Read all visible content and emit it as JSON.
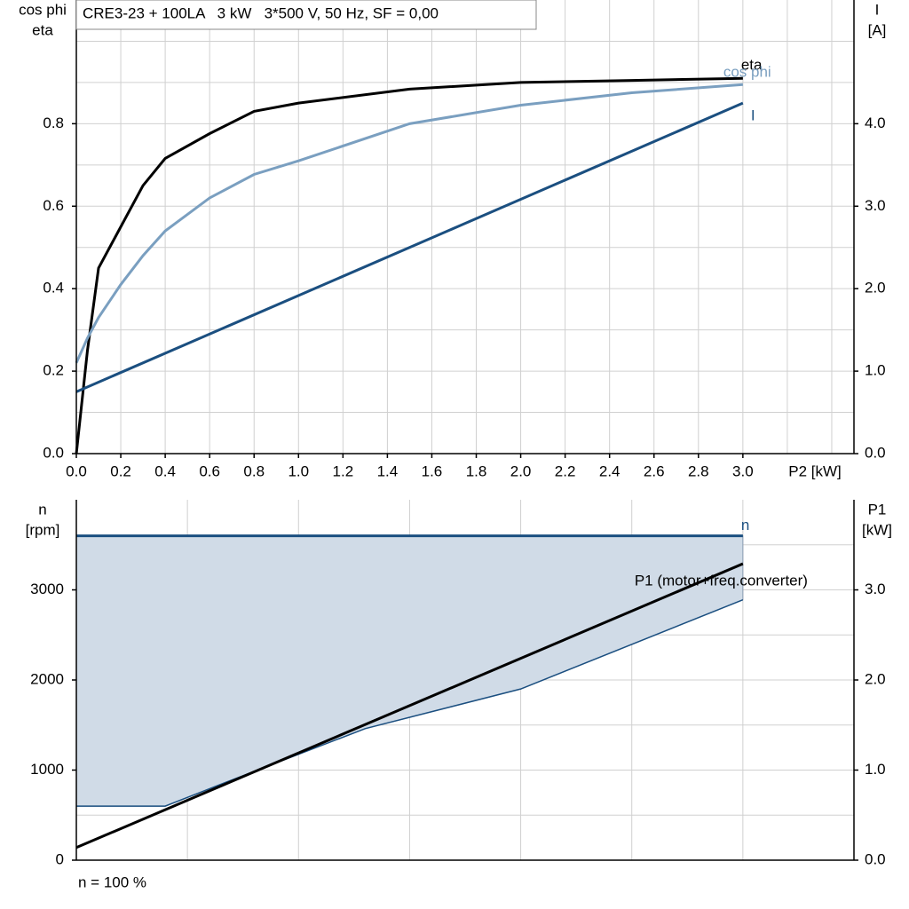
{
  "chart_data": [
    {
      "type": "line",
      "title": "CRE3-23 + 100LA   3 kW   3*500 V, 50 Hz, SF = 0,00",
      "y_label": [
        "cos phi",
        "eta"
      ],
      "y2_label": [
        "I",
        "[A]"
      ],
      "x_label": "P2 [kW]",
      "xlim": [
        0,
        3.5
      ],
      "xticks": [
        {
          "value": 0,
          "label": "0.0"
        },
        0.2,
        0.4,
        0.6,
        0.8,
        {
          "value": 1,
          "label": "1.0"
        },
        1.2,
        1.4,
        1.6,
        1.8,
        {
          "value": 2,
          "label": "2.0"
        },
        2.2,
        2.4,
        2.6,
        2.8,
        {
          "value": 3,
          "label": "3.0"
        }
      ],
      "minor_xticks": [
        3.2,
        3.4
      ],
      "ylim": [
        0,
        1.1
      ],
      "yticks": [
        {
          "value": 0,
          "label": "0.0"
        },
        0.2,
        0.4,
        0.6,
        0.8
      ],
      "minor_yticks": [
        0.1,
        0.3,
        0.5,
        0.7,
        0.9,
        1.0
      ],
      "y2lim": [
        0,
        5.5
      ],
      "y2ticks": [
        {
          "value": 0,
          "label": "0.0"
        },
        {
          "value": 1,
          "label": "1.0"
        },
        {
          "value": 2,
          "label": "2.0"
        },
        {
          "value": 3,
          "label": "3.0"
        },
        {
          "value": 4,
          "label": "4.0"
        }
      ],
      "grid": true,
      "series": [
        {
          "name": "eta",
          "color": "#000000",
          "x": [
            0,
            0.05,
            0.1,
            0.2,
            0.3,
            0.4,
            0.6,
            0.8,
            1.0,
            1.5,
            2.0,
            2.5,
            3.0
          ],
          "values": [
            0,
            0.25,
            0.45,
            0.55,
            0.65,
            0.716,
            0.776,
            0.83,
            0.85,
            0.884,
            0.9,
            0.905,
            0.91
          ]
        },
        {
          "name": "cos phi",
          "color": "#7a9fc0",
          "x": [
            0,
            0.05,
            0.1,
            0.2,
            0.3,
            0.4,
            0.6,
            0.8,
            1.0,
            1.5,
            2.0,
            2.5,
            3.0
          ],
          "values": [
            0.22,
            0.28,
            0.33,
            0.41,
            0.48,
            0.54,
            0.62,
            0.677,
            0.71,
            0.8,
            0.845,
            0.875,
            0.895
          ]
        },
        {
          "name": "I",
          "color": "#1b4f80",
          "axis": "y2",
          "x": [
            0,
            3.0
          ],
          "values": [
            0.75,
            4.25
          ]
        }
      ]
    },
    {
      "type": "line",
      "y_label": [
        "n",
        "[rpm]"
      ],
      "y2_label": [
        "P1",
        "[kW]"
      ],
      "xlim": [
        0,
        3.5
      ],
      "minor_xticks": [
        0.5,
        1,
        1.5,
        2,
        2.5,
        3
      ],
      "ylim": [
        0,
        4000
      ],
      "yticks": [
        0,
        1000,
        2000,
        3000
      ],
      "minor_yticks": [
        500,
        1500,
        2500,
        3500
      ],
      "y2lim": [
        0,
        4.0
      ],
      "y2ticks": [
        {
          "value": 0,
          "label": "0.0"
        },
        {
          "value": 1,
          "label": "1.0"
        },
        {
          "value": 2,
          "label": "2.0"
        },
        {
          "value": 3,
          "label": "3.0"
        }
      ],
      "grid": true,
      "area": {
        "color": "#1b4f80",
        "fill": "#d0dbe7",
        "x": [
          0,
          0.4,
          0.7,
          1.3,
          2.0,
          3.0
        ],
        "values": [
          600,
          600,
          890,
          1460,
          1900,
          2890
        ]
      },
      "series": [
        {
          "name": "n",
          "color": "#1b4f80",
          "x": [
            0,
            3.0
          ],
          "values": [
            3600,
            3600
          ]
        },
        {
          "name": "P1 (motor+freq.converter)",
          "color": "#000000",
          "axis": "y2",
          "x": [
            0,
            3.0
          ],
          "values": [
            0.14,
            3.29
          ]
        }
      ],
      "footnote": "n = 100 %"
    }
  ]
}
